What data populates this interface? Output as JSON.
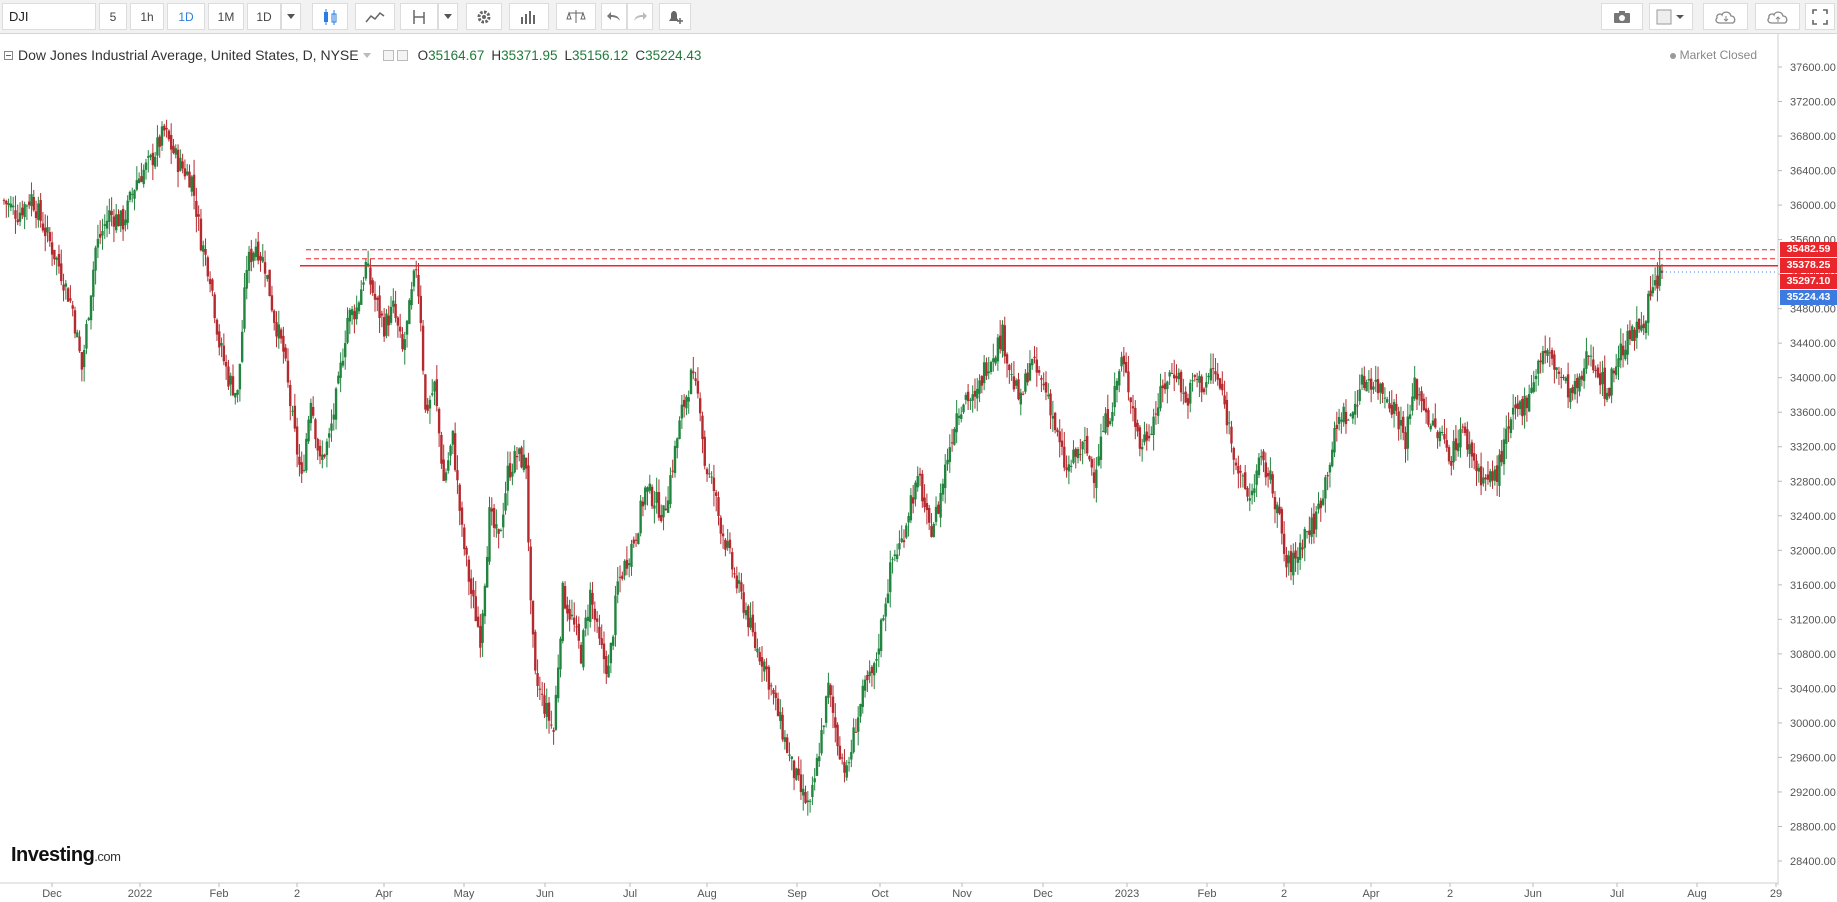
{
  "toolbar": {
    "symbol": "DJI",
    "intervals": [
      "5",
      "1h",
      "1D",
      "1M",
      "1D"
    ],
    "active_interval": "1D"
  },
  "legend": {
    "title": "Dow Jones Industrial Average, United States, D, NYSE",
    "open_label": "O",
    "open": "35164.67",
    "high_label": "H",
    "high": "35371.95",
    "low_label": "L",
    "low": "35156.12",
    "close_label": "C",
    "close": "35224.43"
  },
  "status": "Market Closed",
  "logo": {
    "main": "Investing",
    "suffix": ".com"
  },
  "price_tags": [
    {
      "label": "35482.59",
      "color": "#e8262b"
    },
    {
      "label": "35378.25",
      "color": "#e8262b"
    },
    {
      "label": "35297.10",
      "color": "#e8262b"
    },
    {
      "label": "35224.43",
      "color": "#3b7be0"
    }
  ],
  "colors": {
    "up": "#22853f",
    "down": "#b52a2f",
    "resistance": "#e8262b",
    "last": "#3b7be0"
  },
  "chart_data": {
    "type": "candlestick",
    "x_labels": [
      "Dec",
      "2022",
      "Feb",
      "2",
      "Apr",
      "May",
      "Jun",
      "Jul",
      "Aug",
      "Sep",
      "Oct",
      "Nov",
      "Dec",
      "2023",
      "Feb",
      "2",
      "Apr",
      "2",
      "Jun",
      "Jul",
      "Aug",
      "29"
    ],
    "y_ticks": [
      "28400.00",
      "28800.00",
      "29200.00",
      "29600.00",
      "30000.00",
      "30400.00",
      "30800.00",
      "31200.00",
      "31600.00",
      "32000.00",
      "32400.00",
      "32800.00",
      "33200.00",
      "33600.00",
      "34000.00",
      "34400.00",
      "34800.00",
      "35200.00",
      "35600.00",
      "36000.00",
      "36400.00",
      "36800.00",
      "37200.00",
      "37600.00"
    ],
    "ylim": [
      28200,
      37800
    ],
    "horizontal_levels": [
      {
        "value": 35482.59,
        "style": "dashed"
      },
      {
        "value": 35378.25,
        "style": "dashed"
      },
      {
        "value": 35297.1,
        "style": "solid"
      }
    ],
    "last_price": 35224.43,
    "approx_close_path": [
      [
        0,
        36050
      ],
      [
        6,
        35900
      ],
      [
        12,
        36100
      ],
      [
        18,
        35700
      ],
      [
        24,
        35300
      ],
      [
        30,
        34800
      ],
      [
        34,
        34100
      ],
      [
        40,
        35500
      ],
      [
        46,
        35900
      ],
      [
        52,
        35800
      ],
      [
        58,
        36300
      ],
      [
        64,
        36500
      ],
      [
        70,
        36850
      ],
      [
        76,
        36500
      ],
      [
        82,
        36300
      ],
      [
        86,
        35600
      ],
      [
        90,
        35200
      ],
      [
        94,
        34400
      ],
      [
        98,
        34000
      ],
      [
        102,
        33800
      ],
      [
        106,
        35300
      ],
      [
        110,
        35550
      ],
      [
        114,
        35300
      ],
      [
        118,
        34700
      ],
      [
        122,
        34300
      ],
      [
        126,
        33500
      ],
      [
        130,
        32800
      ],
      [
        134,
        33800
      ],
      [
        138,
        33000
      ],
      [
        142,
        33300
      ],
      [
        146,
        33900
      ],
      [
        150,
        34700
      ],
      [
        154,
        34800
      ],
      [
        158,
        35300
      ],
      [
        162,
        34900
      ],
      [
        166,
        34600
      ],
      [
        170,
        34800
      ],
      [
        174,
        34300
      ],
      [
        176,
        34600
      ],
      [
        180,
        35300
      ],
      [
        182,
        34700
      ],
      [
        184,
        33600
      ],
      [
        188,
        33900
      ],
      [
        192,
        32800
      ],
      [
        196,
        33300
      ],
      [
        200,
        32200
      ],
      [
        204,
        31500
      ],
      [
        208,
        31000
      ],
      [
        212,
        32400
      ],
      [
        216,
        32100
      ],
      [
        220,
        32900
      ],
      [
        224,
        33100
      ],
      [
        228,
        33000
      ],
      [
        230,
        31300
      ],
      [
        232,
        30500
      ],
      [
        236,
        30200
      ],
      [
        240,
        29900
      ],
      [
        244,
        31500
      ],
      [
        248,
        31200
      ],
      [
        252,
        30800
      ],
      [
        256,
        31500
      ],
      [
        260,
        30900
      ],
      [
        264,
        30600
      ],
      [
        268,
        31600
      ],
      [
        272,
        31900
      ],
      [
        276,
        32200
      ],
      [
        280,
        32700
      ],
      [
        284,
        32600
      ],
      [
        288,
        32400
      ],
      [
        292,
        33000
      ],
      [
        296,
        33600
      ],
      [
        300,
        34000
      ],
      [
        304,
        33700
      ],
      [
        306,
        33000
      ],
      [
        310,
        32700
      ],
      [
        312,
        32400
      ],
      [
        316,
        32000
      ],
      [
        320,
        31600
      ],
      [
        324,
        31300
      ],
      [
        328,
        30900
      ],
      [
        332,
        30700
      ],
      [
        336,
        30300
      ],
      [
        340,
        29900
      ],
      [
        344,
        29500
      ],
      [
        348,
        29200
      ],
      [
        352,
        29000
      ],
      [
        356,
        29700
      ],
      [
        360,
        30400
      ],
      [
        364,
        29800
      ],
      [
        368,
        29400
      ],
      [
        372,
        30000
      ],
      [
        376,
        30400
      ],
      [
        380,
        30600
      ],
      [
        384,
        31300
      ],
      [
        388,
        31900
      ],
      [
        392,
        32100
      ],
      [
        396,
        32600
      ],
      [
        400,
        32800
      ],
      [
        404,
        32200
      ],
      [
        408,
        32500
      ],
      [
        412,
        33100
      ],
      [
        416,
        33600
      ],
      [
        420,
        33800
      ],
      [
        424,
        33700
      ],
      [
        428,
        34100
      ],
      [
        432,
        34300
      ],
      [
        436,
        34500
      ],
      [
        440,
        34000
      ],
      [
        444,
        33700
      ],
      [
        448,
        34200
      ],
      [
        452,
        34000
      ],
      [
        456,
        33800
      ],
      [
        460,
        33300
      ],
      [
        464,
        32900
      ],
      [
        468,
        33100
      ],
      [
        472,
        33200
      ],
      [
        476,
        32900
      ],
      [
        480,
        33400
      ],
      [
        484,
        33700
      ],
      [
        488,
        34200
      ],
      [
        492,
        33800
      ],
      [
        496,
        33200
      ],
      [
        500,
        33400
      ],
      [
        504,
        33700
      ],
      [
        508,
        34000
      ],
      [
        512,
        34100
      ],
      [
        516,
        33700
      ],
      [
        520,
        34000
      ],
      [
        524,
        33900
      ],
      [
        528,
        34100
      ],
      [
        532,
        33800
      ],
      [
        536,
        33300
      ],
      [
        540,
        32800
      ],
      [
        544,
        32600
      ],
      [
        548,
        33000
      ],
      [
        552,
        32900
      ],
      [
        556,
        32500
      ],
      [
        560,
        31800
      ],
      [
        564,
        31900
      ],
      [
        568,
        32200
      ],
      [
        572,
        32300
      ],
      [
        576,
        32700
      ],
      [
        580,
        33200
      ],
      [
        584,
        33600
      ],
      [
        588,
        33500
      ],
      [
        592,
        33900
      ],
      [
        596,
        34000
      ],
      [
        600,
        33900
      ],
      [
        604,
        33800
      ],
      [
        608,
        33600
      ],
      [
        612,
        33300
      ],
      [
        616,
        33900
      ],
      [
        620,
        33700
      ],
      [
        624,
        33400
      ],
      [
        628,
        33300
      ],
      [
        632,
        33100
      ],
      [
        636,
        33400
      ],
      [
        640,
        33200
      ],
      [
        644,
        32900
      ],
      [
        648,
        32800
      ],
      [
        652,
        32900
      ],
      [
        656,
        33300
      ],
      [
        660,
        33600
      ],
      [
        664,
        33700
      ],
      [
        668,
        34000
      ],
      [
        672,
        34300
      ],
      [
        676,
        34200
      ],
      [
        680,
        34000
      ],
      [
        684,
        33800
      ],
      [
        688,
        33900
      ],
      [
        692,
        34300
      ],
      [
        696,
        34100
      ],
      [
        700,
        33800
      ],
      [
        704,
        34200
      ],
      [
        708,
        34400
      ],
      [
        712,
        34500
      ],
      [
        716,
        34700
      ],
      [
        720,
        35000
      ],
      [
        724,
        35224
      ]
    ]
  }
}
